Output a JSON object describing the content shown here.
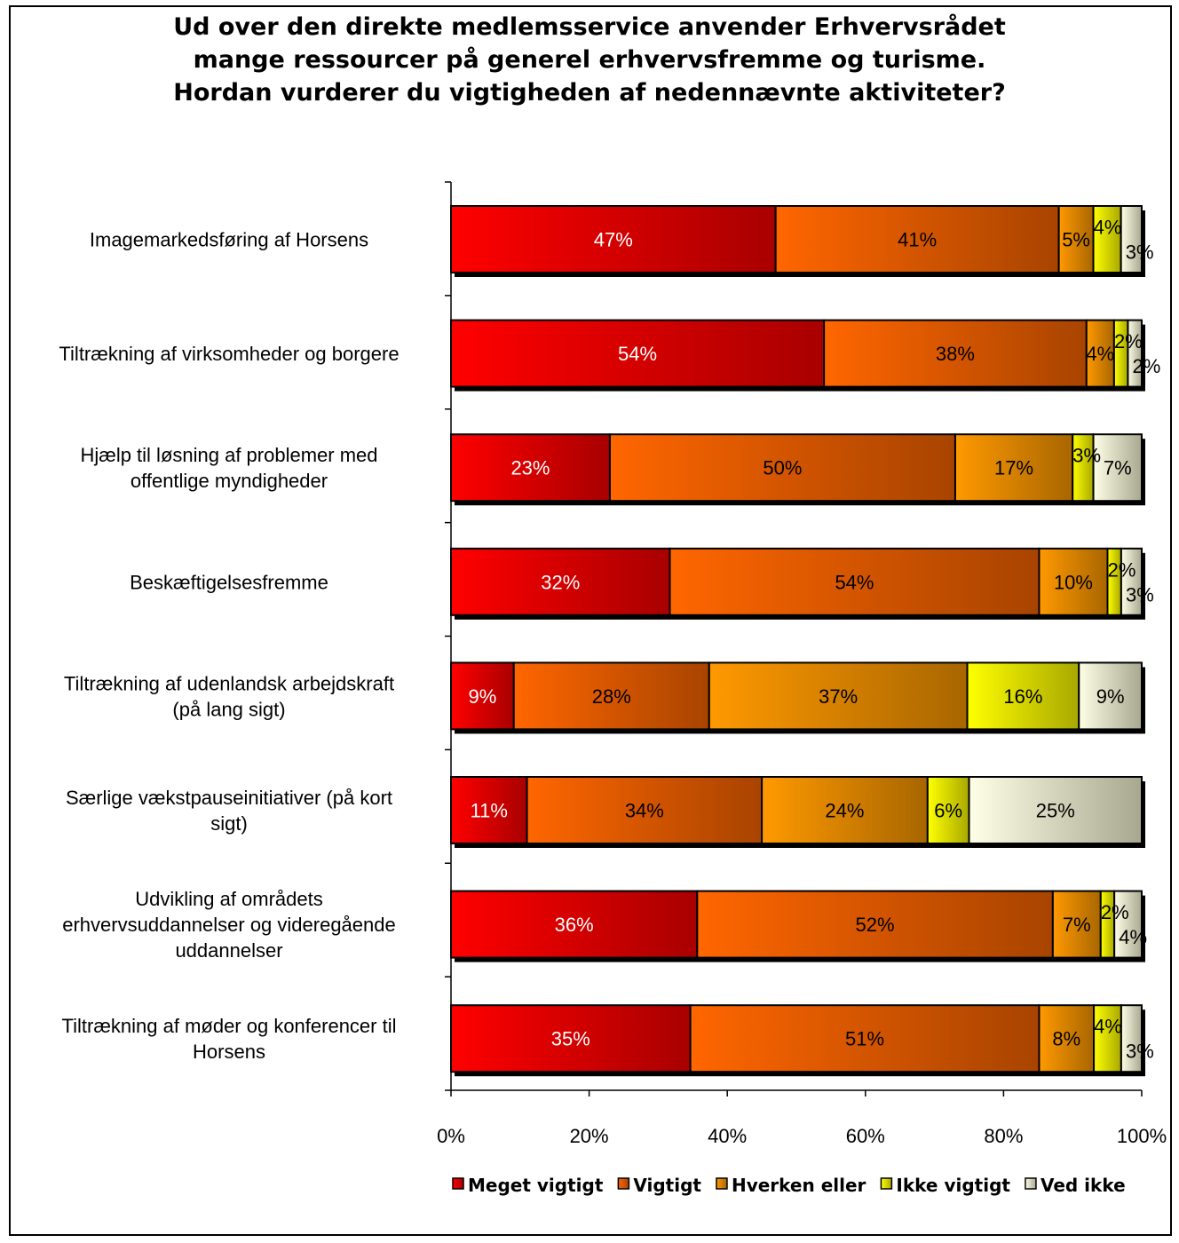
{
  "chart_data": {
    "type": "bar",
    "stacked": true,
    "orientation": "horizontal",
    "title": [
      "Ud over den direkte medlemsservice anvender Erhvervsrådet",
      "mange ressourcer på generel erhvervsfremme og turisme.",
      "Hordan vurderer du vigtigheden af nedennævnte aktiviteter?"
    ],
    "categories": [
      [
        "Imagemarkedsføring af Horsens"
      ],
      [
        "Tiltrækning af virksomheder og borgere"
      ],
      [
        "Hjælp til løsning af problemer med",
        "offentlige myndigheder"
      ],
      [
        "Beskæftigelsesfremme"
      ],
      [
        "Tiltrækning af udenlandsk arbejdskraft",
        "(på lang sigt)"
      ],
      [
        "Særlige vækstpauseinitiativer  (på kort",
        "sigt)"
      ],
      [
        "Udvikling af områdets",
        "erhvervsuddannelser og videregående",
        "uddannelser"
      ],
      [
        "Tiltrækning af møder og konferencer til",
        "Horsens"
      ]
    ],
    "series": [
      {
        "name": "Meget vigtigt",
        "color": "#ff0000",
        "color_dark": "#a80000",
        "label_color": "#ffffff",
        "values": [
          47,
          54,
          23,
          32,
          9,
          11,
          36,
          35
        ],
        "labels": [
          "47%",
          "54%",
          "23%",
          "32%",
          "9%",
          "11%",
          "36%",
          "35%"
        ]
      },
      {
        "name": "Vigtigt",
        "color": "#ff6600",
        "color_dark": "#a84400",
        "label_color": "#000000",
        "values": [
          41,
          38,
          50,
          54,
          28,
          34,
          52,
          51
        ],
        "labels": [
          "41%",
          "38%",
          "50%",
          "54%",
          "28%",
          "34%",
          "52%",
          "51%"
        ]
      },
      {
        "name": "Hverken eller",
        "color": "#ff9900",
        "color_dark": "#a86600",
        "label_color": "#000000",
        "values": [
          5,
          4,
          17,
          10,
          37,
          24,
          7,
          8
        ],
        "labels": [
          "5%",
          "4%",
          "17%",
          "10%",
          "37%",
          "24%",
          "7%",
          "8%"
        ]
      },
      {
        "name": "Ikke vigtigt",
        "color": "#ffff00",
        "color_dark": "#a8a800",
        "label_color": "#000000",
        "values": [
          4,
          2,
          3,
          2,
          16,
          6,
          2,
          4
        ],
        "labels": [
          "4%",
          "2%",
          "3%",
          "2%",
          "16%",
          "6%",
          "2%",
          "4%"
        ]
      },
      {
        "name": "Ved ikke",
        "color": "#ffffe8",
        "color_dark": "#a8a890",
        "label_color": "#000000",
        "values": [
          3,
          2,
          7,
          3,
          9,
          25,
          4,
          3
        ],
        "labels": [
          "3%",
          "2%",
          "7%",
          "3%",
          "9%",
          "25%",
          "4%",
          "3%"
        ]
      }
    ],
    "xlim": [
      0,
      100
    ],
    "xticks": [
      "0%",
      "20%",
      "40%",
      "60%",
      "80%",
      "100%"
    ],
    "grid": false,
    "legend_position": "bottom"
  }
}
